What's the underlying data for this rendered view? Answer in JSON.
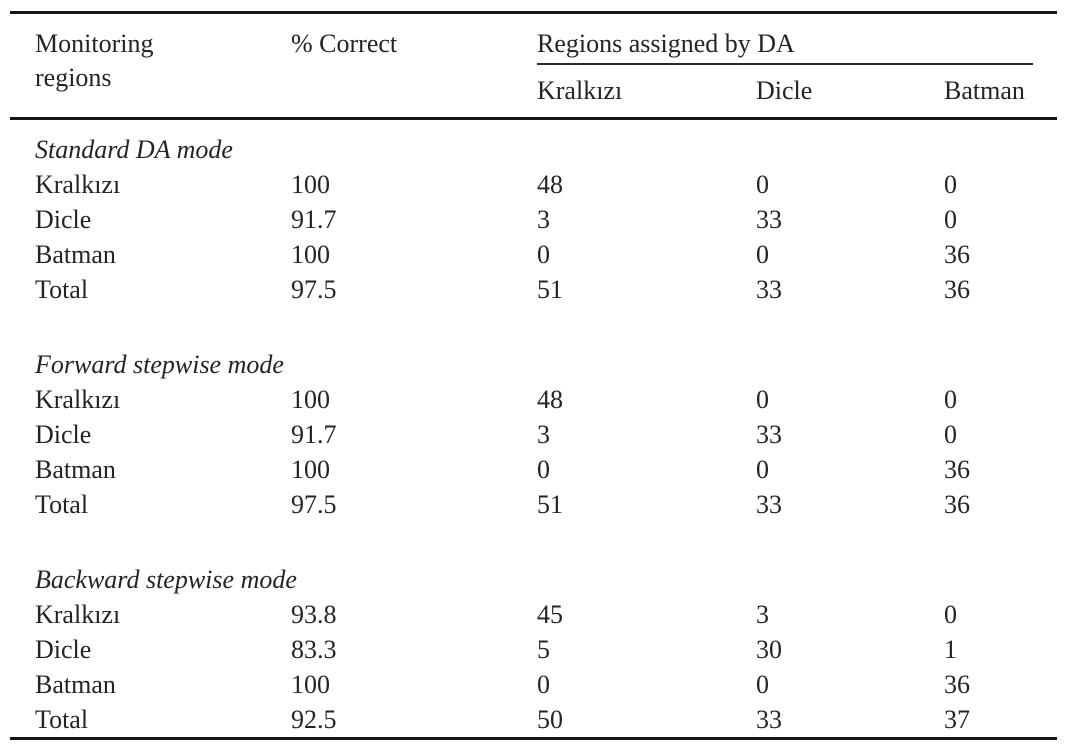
{
  "table": {
    "columns": {
      "monitoring_regions": "Monitoring regions",
      "percent_correct": "% Correct",
      "group_header": "Regions assigned by DA",
      "assigned_regions": [
        "Kralkızı",
        "Dicle",
        "Batman"
      ]
    },
    "sections": [
      {
        "title": "Standard DA mode",
        "rows": [
          {
            "label": "Kralkızı",
            "percent_correct": "100",
            "assigned": [
              "48",
              "0",
              "0"
            ]
          },
          {
            "label": "Dicle",
            "percent_correct": "91.7",
            "assigned": [
              "3",
              "33",
              "0"
            ]
          },
          {
            "label": "Batman",
            "percent_correct": "100",
            "assigned": [
              "0",
              "0",
              "36"
            ]
          },
          {
            "label": "Total",
            "percent_correct": "97.5",
            "assigned": [
              "51",
              "33",
              "36"
            ]
          }
        ]
      },
      {
        "title": "Forward stepwise mode",
        "rows": [
          {
            "label": "Kralkızı",
            "percent_correct": "100",
            "assigned": [
              "48",
              "0",
              "0"
            ]
          },
          {
            "label": "Dicle",
            "percent_correct": "91.7",
            "assigned": [
              "3",
              "33",
              "0"
            ]
          },
          {
            "label": "Batman",
            "percent_correct": "100",
            "assigned": [
              "0",
              "0",
              "36"
            ]
          },
          {
            "label": "Total",
            "percent_correct": "97.5",
            "assigned": [
              "51",
              "33",
              "36"
            ]
          }
        ]
      },
      {
        "title": "Backward stepwise mode",
        "rows": [
          {
            "label": "Kralkızı",
            "percent_correct": "93.8",
            "assigned": [
              "45",
              "3",
              "0"
            ]
          },
          {
            "label": "Dicle",
            "percent_correct": "83.3",
            "assigned": [
              "5",
              "30",
              "1"
            ]
          },
          {
            "label": "Batman",
            "percent_correct": "100",
            "assigned": [
              "0",
              "0",
              "36"
            ]
          },
          {
            "label": "Total",
            "percent_correct": "92.5",
            "assigned": [
              "50",
              "33",
              "37"
            ]
          }
        ]
      }
    ]
  },
  "colors": {
    "text": "#242424",
    "rule": "#161616",
    "bg": "#ffffff"
  }
}
